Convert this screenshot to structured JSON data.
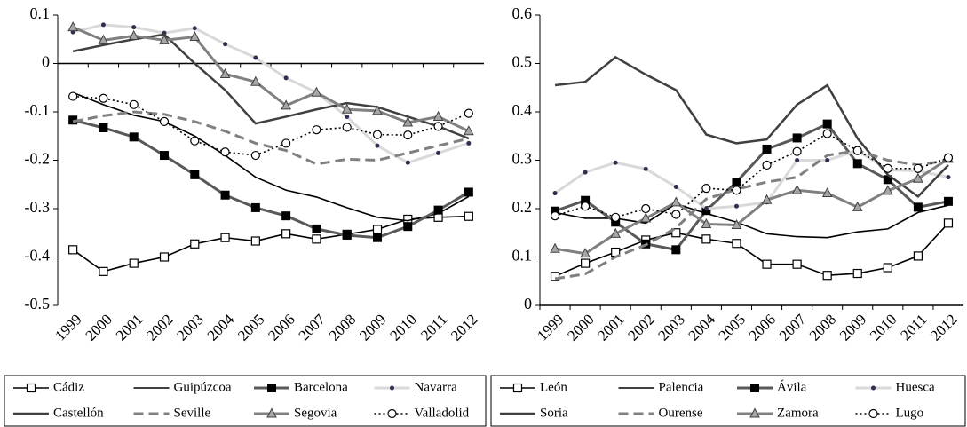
{
  "chart_data": [
    {
      "type": "line",
      "legend": "bottom",
      "categories": [
        "1999",
        "2000",
        "2001",
        "2002",
        "2003",
        "2004",
        "2005",
        "2006",
        "2007",
        "2008",
        "2009",
        "2010",
        "2011",
        "2012"
      ],
      "ylim": [
        -0.5,
        0.1
      ],
      "yticks": [
        0.1,
        0,
        -0.1,
        -0.2,
        -0.3,
        -0.4,
        -0.5
      ],
      "series": [
        {
          "name": "Cádiz",
          "color": "#000000",
          "marker": "square-open",
          "dash": "solid",
          "values": [
            -0.385,
            -0.43,
            -0.413,
            -0.4,
            -0.373,
            -0.36,
            -0.367,
            -0.352,
            -0.363,
            -0.353,
            -0.343,
            -0.322,
            -0.318,
            -0.316
          ]
        },
        {
          "name": "Guipúzcoa",
          "color": "#000000",
          "marker": "none",
          "dash": "solid",
          "values": [
            -0.06,
            -0.085,
            -0.107,
            -0.12,
            -0.15,
            -0.19,
            -0.235,
            -0.262,
            -0.276,
            -0.298,
            -0.318,
            -0.325,
            -0.31,
            -0.275
          ]
        },
        {
          "name": "Barcelona",
          "color": "#595959",
          "marker": "square-filled",
          "dash": "solid",
          "values": [
            -0.117,
            -0.133,
            -0.152,
            -0.19,
            -0.23,
            -0.272,
            -0.298,
            -0.315,
            -0.342,
            -0.355,
            -0.36,
            -0.337,
            -0.303,
            -0.266
          ]
        },
        {
          "name": "Navarra",
          "color": "#d9d9d9",
          "marker": "dot",
          "dash": "solid",
          "values": [
            0.065,
            0.08,
            0.075,
            0.063,
            0.073,
            0.04,
            0.012,
            -0.03,
            -0.06,
            -0.11,
            -0.17,
            -0.205,
            -0.185,
            -0.165
          ]
        },
        {
          "name": "Castellón",
          "color": "#404040",
          "marker": "none",
          "dash": "solid",
          "values": [
            0.025,
            0.038,
            0.05,
            0.06,
            0.0,
            -0.055,
            -0.124,
            -0.11,
            -0.095,
            -0.082,
            -0.09,
            -0.11,
            -0.13,
            -0.155
          ]
        },
        {
          "name": "Seville",
          "color": "#808080",
          "marker": "none",
          "dash": "dash",
          "values": [
            -0.12,
            -0.108,
            -0.1,
            -0.105,
            -0.12,
            -0.14,
            -0.165,
            -0.18,
            -0.208,
            -0.198,
            -0.2,
            -0.185,
            -0.17,
            -0.155
          ]
        },
        {
          "name": "Segovia",
          "color": "#808080",
          "marker": "triangle",
          "dash": "solid",
          "values": [
            0.075,
            0.048,
            0.057,
            0.048,
            0.055,
            -0.022,
            -0.038,
            -0.087,
            -0.06,
            -0.095,
            -0.098,
            -0.122,
            -0.11,
            -0.14
          ]
        },
        {
          "name": "Valladolid",
          "color": "#000000",
          "marker": "circle-open",
          "dash": "dot",
          "values": [
            -0.068,
            -0.072,
            -0.085,
            -0.12,
            -0.16,
            -0.183,
            -0.19,
            -0.165,
            -0.137,
            -0.132,
            -0.147,
            -0.148,
            -0.13,
            -0.103
          ]
        }
      ]
    },
    {
      "type": "line",
      "legend": "bottom",
      "categories": [
        "1999",
        "2000",
        "2001",
        "2002",
        "2003",
        "2004",
        "2005",
        "2006",
        "2007",
        "2008",
        "2009",
        "2010",
        "2011",
        "2012"
      ],
      "ylim": [
        0,
        0.6
      ],
      "yticks": [
        0.6,
        0.5,
        0.4,
        0.3,
        0.2,
        0.1,
        0
      ],
      "series": [
        {
          "name": "León",
          "color": "#000000",
          "marker": "square-open",
          "dash": "solid",
          "values": [
            0.06,
            0.087,
            0.11,
            0.135,
            0.15,
            0.137,
            0.128,
            0.085,
            0.085,
            0.062,
            0.066,
            0.078,
            0.102,
            0.17
          ]
        },
        {
          "name": "Palencia",
          "color": "#000000",
          "marker": "none",
          "dash": "solid",
          "values": [
            0.192,
            0.18,
            0.18,
            0.17,
            0.21,
            0.19,
            0.172,
            0.148,
            0.142,
            0.14,
            0.152,
            0.158,
            0.192,
            0.207
          ]
        },
        {
          "name": "Ávila",
          "color": "#595959",
          "marker": "square-filled",
          "dash": "solid",
          "values": [
            0.195,
            0.217,
            0.172,
            0.127,
            0.115,
            0.196,
            0.255,
            0.323,
            0.346,
            0.375,
            0.293,
            0.26,
            0.203,
            0.215
          ]
        },
        {
          "name": "Huesca",
          "color": "#d9d9d9",
          "marker": "dot",
          "dash": "solid",
          "values": [
            0.232,
            0.275,
            0.295,
            0.282,
            0.245,
            0.2,
            0.205,
            0.213,
            0.3,
            0.3,
            0.32,
            0.28,
            0.278,
            0.265
          ]
        },
        {
          "name": "Soria",
          "color": "#404040",
          "marker": "none",
          "dash": "solid",
          "values": [
            0.455,
            0.462,
            0.513,
            0.477,
            0.445,
            0.353,
            0.335,
            0.343,
            0.415,
            0.455,
            0.345,
            0.27,
            0.225,
            0.29
          ]
        },
        {
          "name": "Ourense",
          "color": "#808080",
          "marker": "none",
          "dash": "dash",
          "values": [
            0.055,
            0.065,
            0.1,
            0.125,
            0.16,
            0.22,
            0.24,
            0.255,
            0.265,
            0.31,
            0.32,
            0.3,
            0.29,
            0.3
          ]
        },
        {
          "name": "Zamora",
          "color": "#808080",
          "marker": "triangle",
          "dash": "solid",
          "values": [
            0.117,
            0.107,
            0.148,
            0.18,
            0.213,
            0.168,
            0.166,
            0.218,
            0.238,
            0.232,
            0.203,
            0.237,
            0.262,
            0.303
          ]
        },
        {
          "name": "Lugo",
          "color": "#000000",
          "marker": "circle-open",
          "dash": "dot",
          "values": [
            0.185,
            0.205,
            0.182,
            0.2,
            0.188,
            0.242,
            0.238,
            0.29,
            0.318,
            0.355,
            0.32,
            0.283,
            0.283,
            0.305
          ]
        }
      ]
    }
  ]
}
